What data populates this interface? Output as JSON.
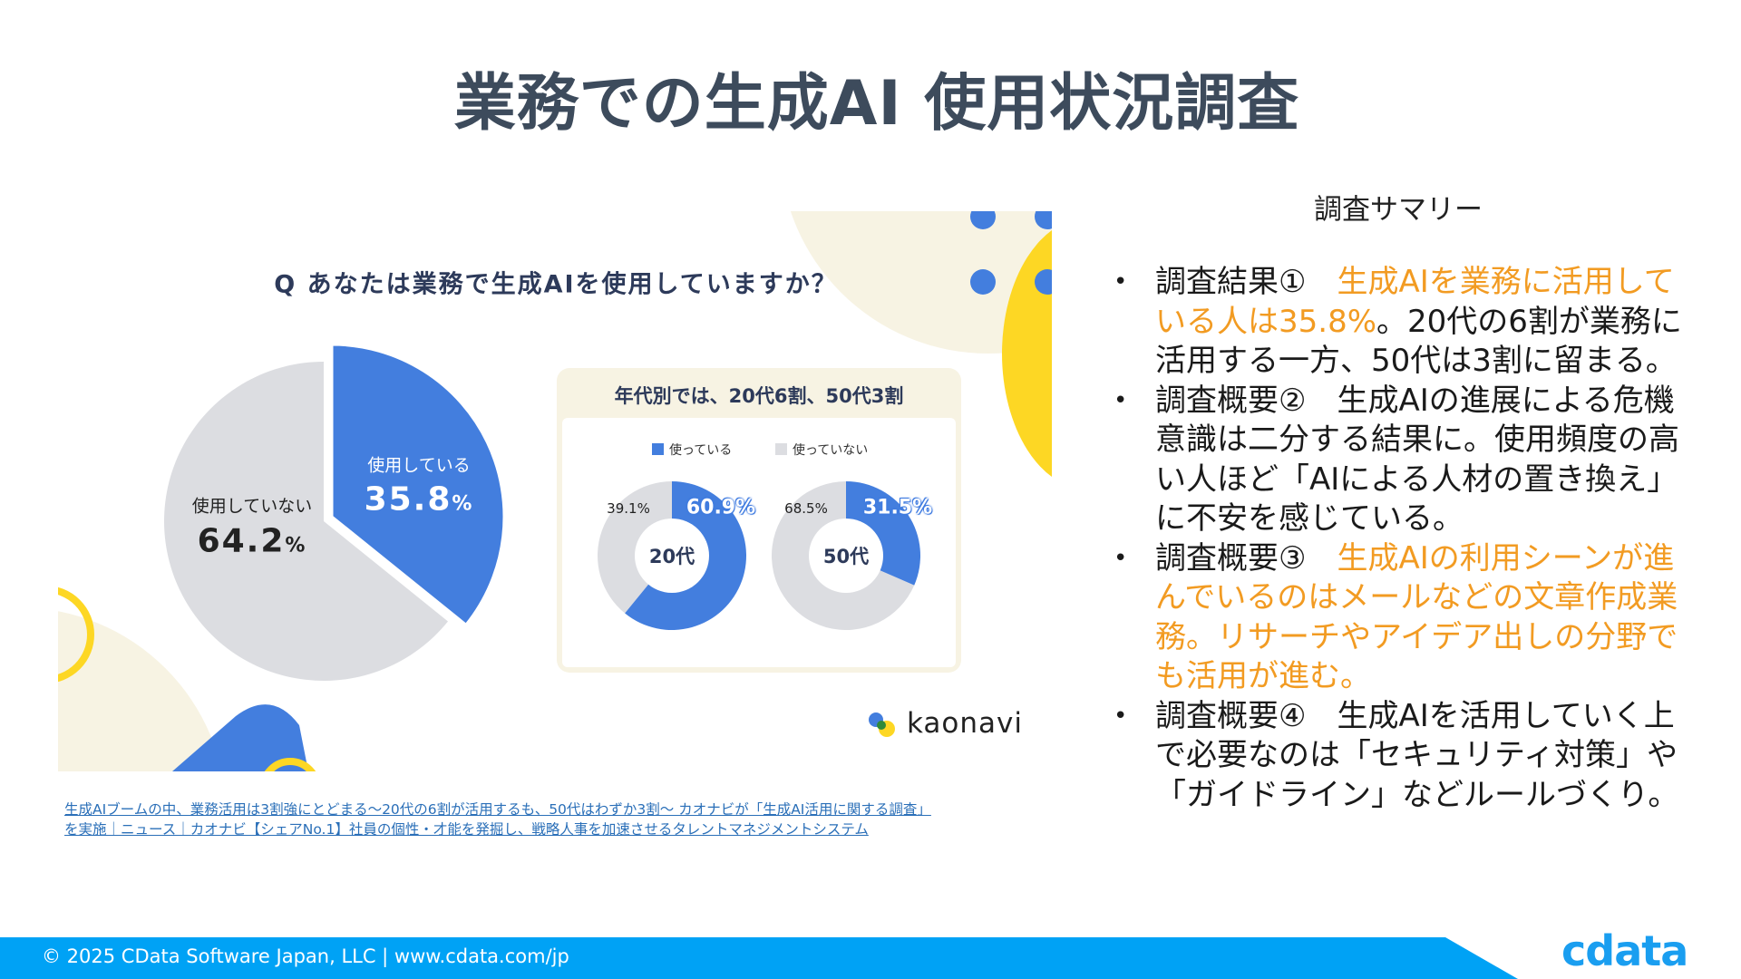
{
  "title": "業務での生成AI 使用状況調査",
  "infographic": {
    "question": "Q あなたは業務で生成AIを使用していますか？",
    "overall": {
      "used_label": "使用している",
      "used_value": "35.8",
      "used_pct": 35.8,
      "not_used_label": "使用していない",
      "not_used_value": "64.2",
      "pct_sign": "%"
    },
    "age_box": {
      "title": "年代別では、20代6割、50代3割",
      "legend_used": "使っている",
      "legend_not_used": "使っていない",
      "groups": [
        {
          "label": "20代",
          "used": "60.9%",
          "not_used": "39.1%",
          "used_pct": 60.9
        },
        {
          "label": "50代",
          "used": "31.5%",
          "not_used": "68.5%",
          "used_pct": 31.5
        }
      ]
    },
    "brand": "kaonavi",
    "colors": {
      "used": "#437ede",
      "not_used": "#dcdde1",
      "accent_yellow": "#fdd724",
      "cream": "#f7f3e3"
    }
  },
  "source_link": "生成AIブームの中、業務活用は3割強にとどまる～20代の6割が活用するも、50代はわずか3割～ カオナビが「生成AI活用に関する調査」を実施｜ニュース｜カオナビ【シェアNo.1】社員の個性・才能を発掘し、戦略人事を加速させるタレントマネジメントシステム",
  "summary": {
    "title": "調査サマリー",
    "items": [
      {
        "prefix": "調査結果①　",
        "highlight": "生成AIを業務に活用している人は35.8%",
        "rest": "。20代の6割が業務に活用する一方、50代は3割に留まる。"
      },
      {
        "prefix": "調査概要②　",
        "highlight": "",
        "rest": "生成AIの進展による危機意識は二分する結果に。使用頻度の高い人ほど「AIによる人材の置き換え」に不安を感じている。"
      },
      {
        "prefix": "調査概要③　",
        "highlight": "生成AIの利用シーンが進んでいるのはメールなどの文章作成業務。リサーチやアイデア出しの分野でも活用が進む。",
        "rest": ""
      },
      {
        "prefix": "調査概要④　",
        "highlight": "",
        "rest": "生成AIを活用していく上で必要なのは「セキュリティ対策」や「ガイドライン」などルールづくり。"
      }
    ],
    "bullet": "•",
    "highlight_color": "#f29b22"
  },
  "footer": {
    "copyright": "© 2025 CData Software Japan, LLC |  www.cdata.com/jp",
    "logo": "cdata",
    "color": "#00a2f5"
  }
}
